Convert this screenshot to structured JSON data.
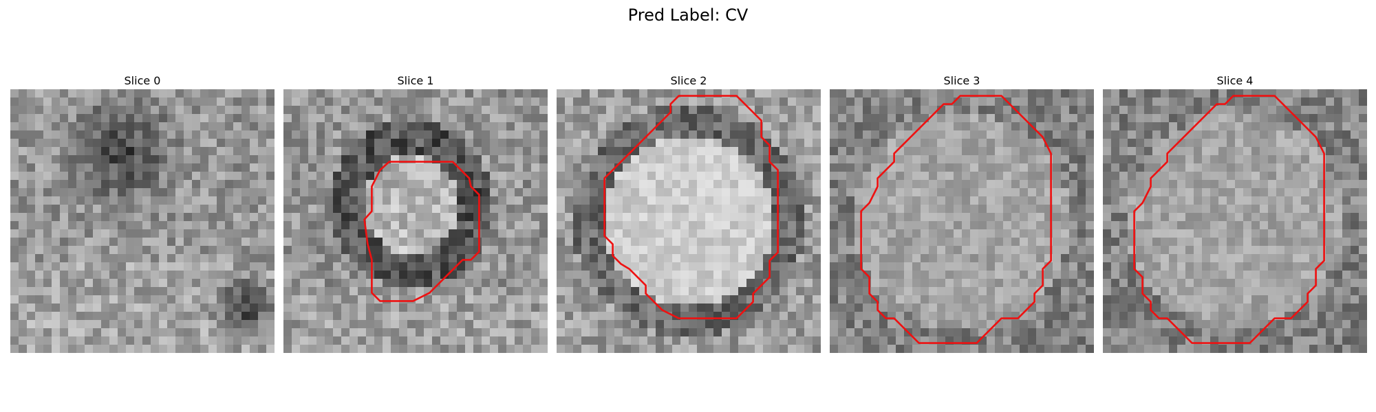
{
  "figure": {
    "title": "Pred Label: CV",
    "panels": [
      {
        "title": "Slice 0",
        "has_contour": false
      },
      {
        "title": "Slice 1",
        "has_contour": true
      },
      {
        "title": "Slice 2",
        "has_contour": true
      },
      {
        "title": "Slice 3",
        "has_contour": true
      },
      {
        "title": "Slice 4",
        "has_contour": true
      }
    ],
    "contour_color": "#ee1111",
    "colormap": "grayscale"
  }
}
